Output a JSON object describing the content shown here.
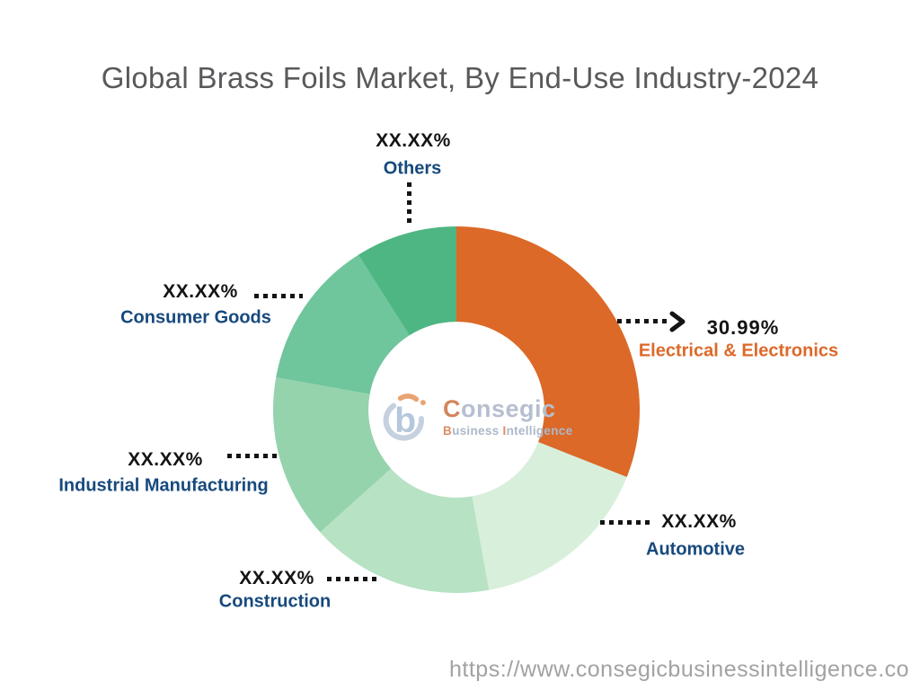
{
  "title": "Global Brass Foils Market, By End-Use Industry-2024",
  "footer": {
    "url": "https://www.consegicbusinessintelligence.co"
  },
  "watermark": {
    "icon": "consegic-b-logo",
    "brand_initial": "C",
    "brand_rest": "onsegic",
    "sub_initial_1": "B",
    "sub_rest_1": "usiness ",
    "sub_initial_2": "I",
    "sub_rest_2": "ntelligence"
  },
  "colors": {
    "accent_orange": "#DC6928",
    "label_navy": "#17497D",
    "label_black": "#141414",
    "leader": "#141414",
    "title_gray": "#58595B",
    "url_gray": "#A2A2A2"
  },
  "chart_data": {
    "type": "pie",
    "subtype": "donut",
    "title": "Global Brass Foils Market, By End-Use Industry-2024",
    "start_angle_deg": 0,
    "direction": "clockwise",
    "inner_radius_ratio": 0.48,
    "legend": "none",
    "segments": [
      {
        "label": "Electrical & Electronics",
        "value_label": "30.99%",
        "value": 30.99,
        "color": "#DC6928"
      },
      {
        "label": "Automotive",
        "value_label": "XX.XX%",
        "value": 16.17,
        "color": "#D8EFDC"
      },
      {
        "label": "Construction",
        "value_label": "XX.XX%",
        "value": 16.19,
        "color": "#B7E2C3"
      },
      {
        "label": "Industrial Manufacturing",
        "value_label": "XX.XX%",
        "value": 14.47,
        "color": "#95D3AD"
      },
      {
        "label": "Consumer Goods",
        "value_label": "XX.XX%",
        "value": 13.2,
        "color": "#6FC59C"
      },
      {
        "label": "Others",
        "value_label": "XX.XX%",
        "value": 8.98,
        "color": "#4EB682"
      }
    ]
  }
}
